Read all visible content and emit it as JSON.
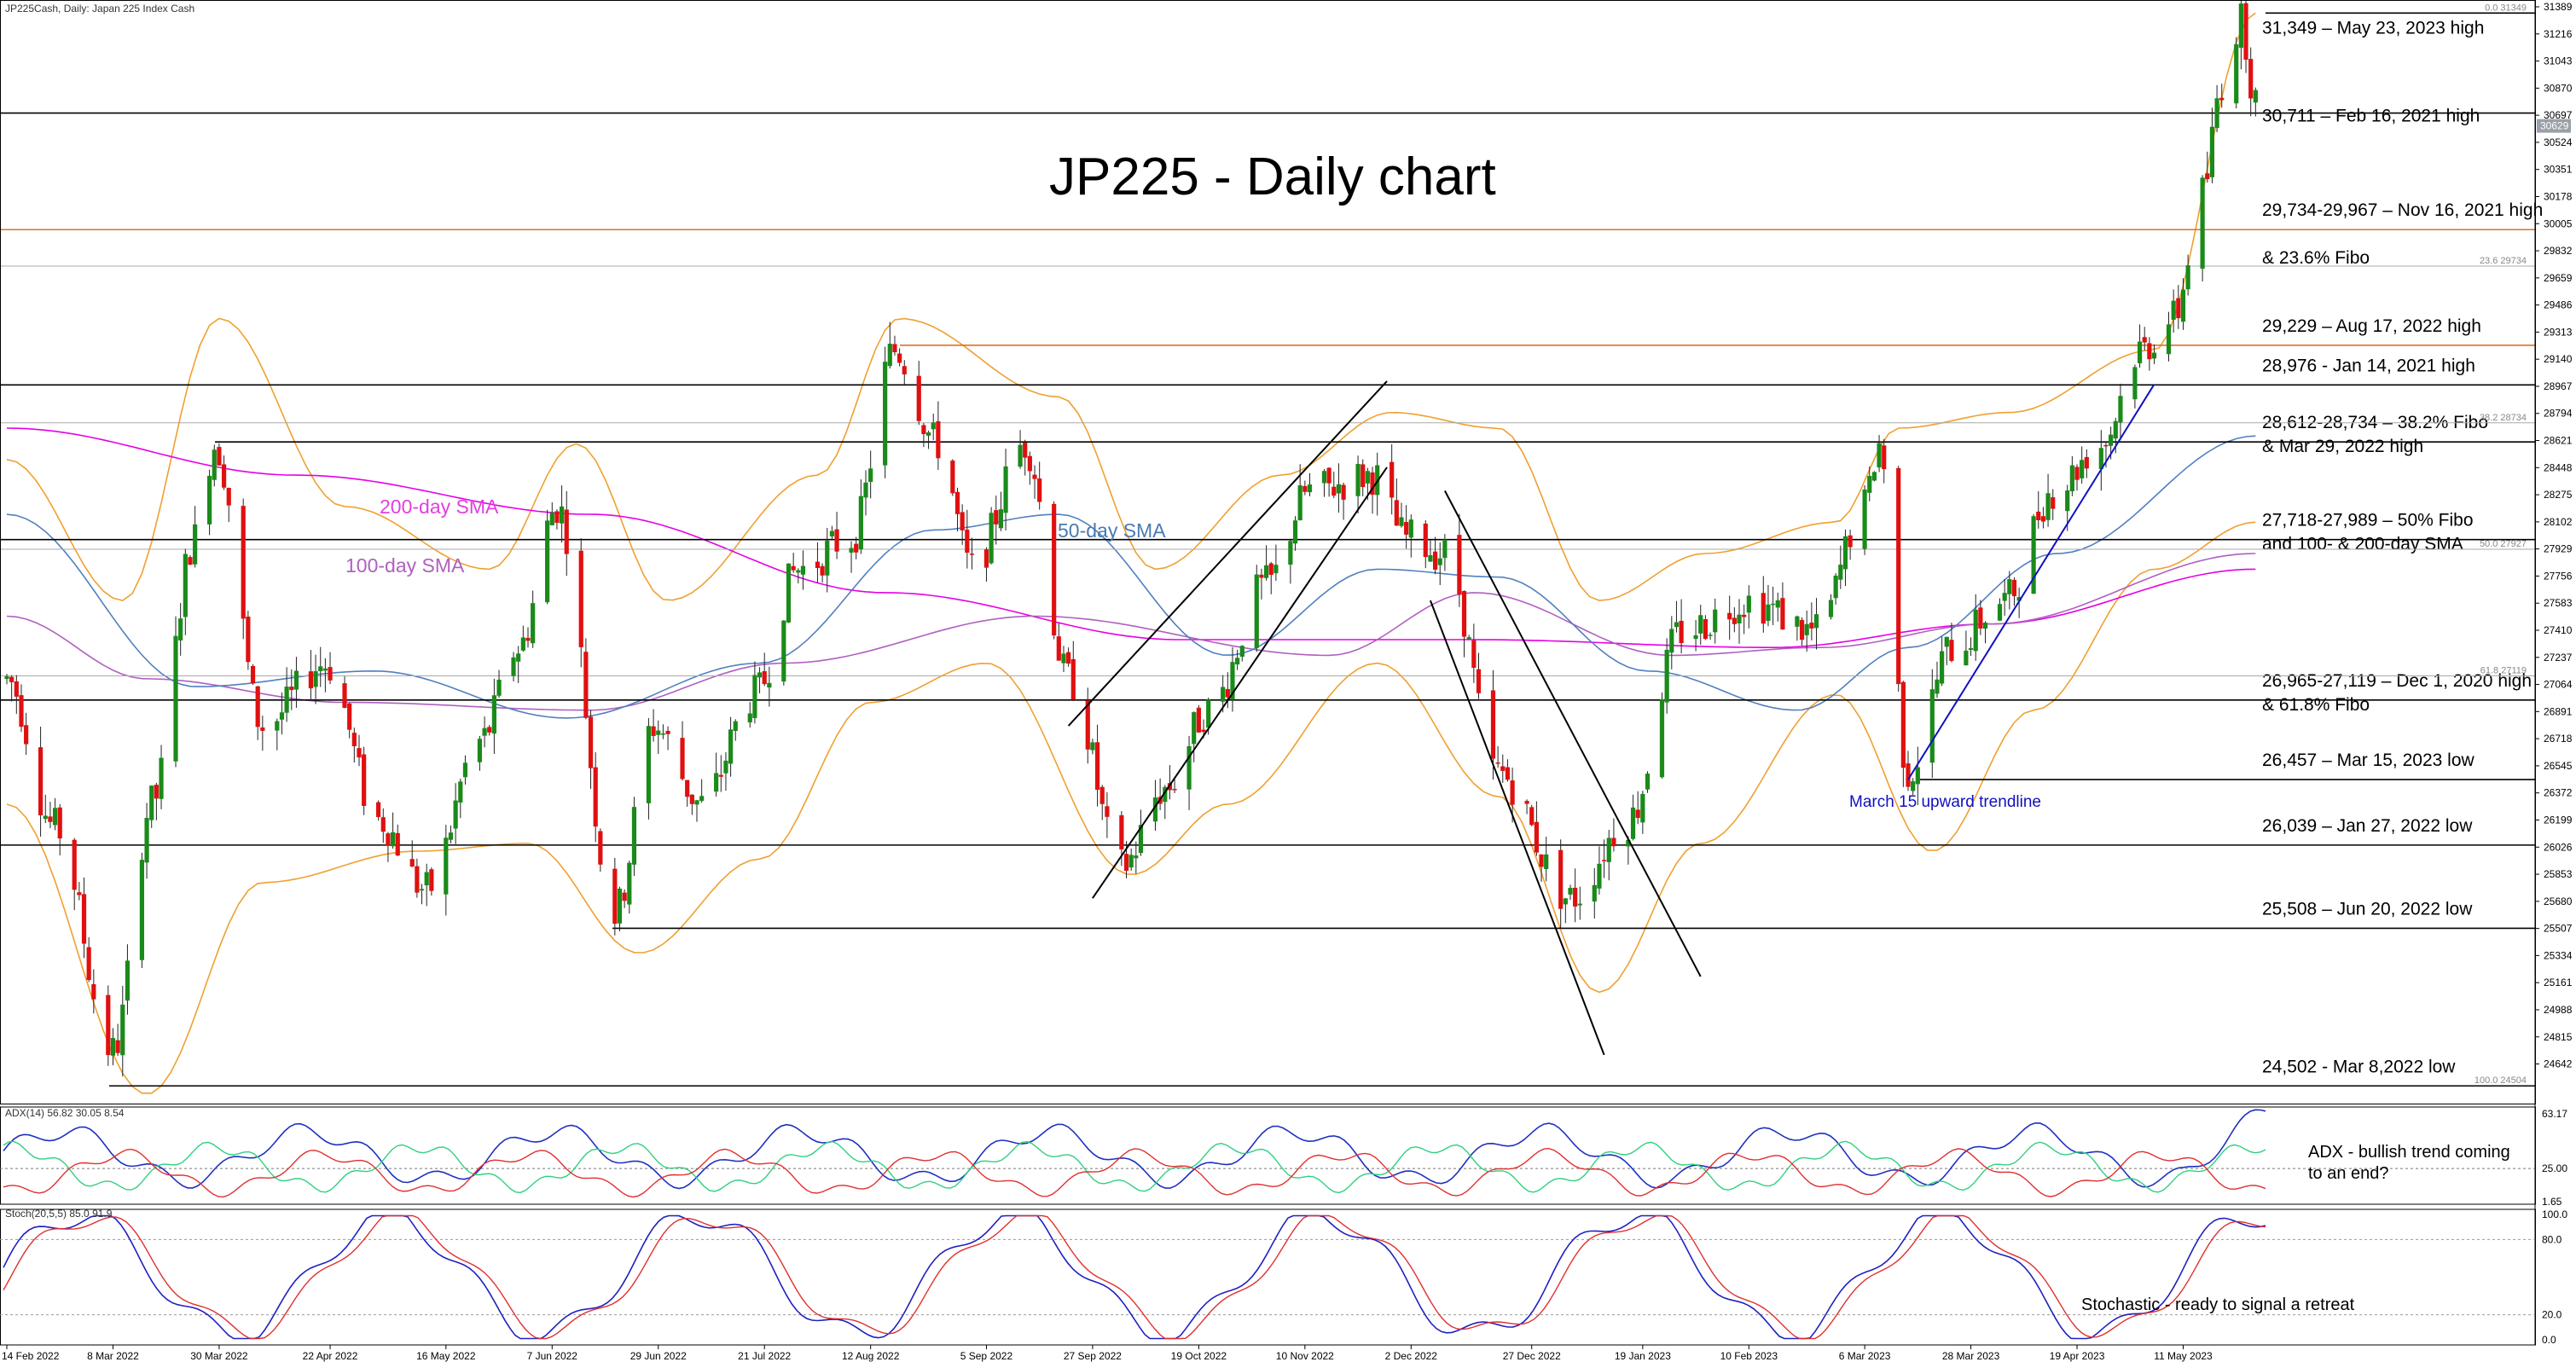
{
  "header": {
    "instrument": "JP225Cash, Daily:  Japan 225 Index Cash",
    "title": "JP225 - Daily chart"
  },
  "chart_data": {
    "type": "candlestick",
    "title": "JP225 - Daily chart",
    "y_range": [
      24400,
      31389
    ],
    "x_range": [
      "2022-02-14",
      "2023-05-23"
    ],
    "price_axis_ticks": [
      "31389",
      "31216",
      "31043",
      "30870",
      "30697",
      "30524",
      "30351",
      "30178",
      "30005",
      "29832",
      "29659",
      "29486",
      "29313",
      "29140",
      "28967",
      "28794",
      "28621",
      "28448",
      "28275",
      "28102",
      "27929",
      "27756",
      "27583",
      "27410",
      "27237",
      "27064",
      "26891",
      "26718",
      "26545",
      "26372",
      "26199",
      "26026",
      "25853",
      "25680",
      "25507",
      "25334",
      "25161",
      "24988",
      "24815",
      "24642"
    ],
    "current_price_label": "30629",
    "date_axis": [
      "14 Feb 2022",
      "8 Mar 2022",
      "30 Mar 2022",
      "22 Apr 2022",
      "16 May 2022",
      "7 Jun 2022",
      "29 Jun 2022",
      "21 Jul 2022",
      "12 Aug 2022",
      "5 Sep 2022",
      "27 Sep 2022",
      "19 Oct 2022",
      "10 Nov 2022",
      "2 Dec 2022",
      "27 Dec 2022",
      "19 Jan 2023",
      "10 Feb 2023",
      "6 Mar 2023",
      "28 Mar 2023",
      "19 Apr 2023",
      "11 May 2023"
    ],
    "price_path": [
      [
        "2022-02-14",
        27100
      ],
      [
        "2022-02-24",
        26150
      ],
      [
        "2022-03-08",
        24720
      ],
      [
        "2022-03-16",
        26300
      ],
      [
        "2022-03-25",
        28000
      ],
      [
        "2022-03-29",
        28600
      ],
      [
        "2022-04-08",
        26800
      ],
      [
        "2022-04-21",
        27200
      ],
      [
        "2022-05-02",
        26200
      ],
      [
        "2022-05-12",
        25750
      ],
      [
        "2022-05-23",
        26700
      ],
      [
        "2022-05-31",
        27300
      ],
      [
        "2022-06-08",
        28200
      ],
      [
        "2022-06-20",
        25600
      ],
      [
        "2022-06-28",
        26800
      ],
      [
        "2022-07-08",
        26300
      ],
      [
        "2022-07-19",
        27000
      ],
      [
        "2022-07-28",
        27800
      ],
      [
        "2022-08-08",
        28000
      ],
      [
        "2022-08-17",
        29200
      ],
      [
        "2022-08-26",
        28600
      ],
      [
        "2022-09-02",
        27800
      ],
      [
        "2022-09-13",
        28600
      ],
      [
        "2022-09-22",
        27100
      ],
      [
        "2022-10-03",
        25900
      ],
      [
        "2022-10-12",
        26400
      ],
      [
        "2022-10-21",
        26900
      ],
      [
        "2022-11-02",
        27700
      ],
      [
        "2022-11-11",
        28300
      ],
      [
        "2022-11-24",
        28400
      ],
      [
        "2022-12-01",
        28000
      ],
      [
        "2022-12-09",
        27900
      ],
      [
        "2022-12-20",
        26500
      ],
      [
        "2023-01-04",
        25700
      ],
      [
        "2023-01-16",
        26200
      ],
      [
        "2023-01-27",
        27400
      ],
      [
        "2023-02-10",
        27600
      ],
      [
        "2023-02-24",
        27400
      ],
      [
        "2023-03-06",
        28200
      ],
      [
        "2023-03-09",
        28600
      ],
      [
        "2023-03-15",
        26500
      ],
      [
        "2023-03-24",
        27300
      ],
      [
        "2023-04-04",
        27600
      ],
      [
        "2023-04-14",
        28300
      ],
      [
        "2023-04-24",
        28600
      ],
      [
        "2023-05-02",
        29200
      ],
      [
        "2023-05-09",
        29400
      ],
      [
        "2023-05-15",
        30200
      ],
      [
        "2023-05-19",
        30900
      ],
      [
        "2023-05-23",
        31300
      ],
      [
        "2023-05-26",
        30800
      ]
    ],
    "moving_averages": [
      {
        "name": "200-day SMA",
        "color": "#e600e6",
        "path": [
          [
            "2022-02-14",
            28700
          ],
          [
            "2022-04-15",
            28400
          ],
          [
            "2022-06-15",
            28150
          ],
          [
            "2022-08-15",
            27650
          ],
          [
            "2022-10-15",
            27350
          ],
          [
            "2022-12-15",
            27350
          ],
          [
            "2023-02-15",
            27300
          ],
          [
            "2023-04-01",
            27450
          ],
          [
            "2023-05-26",
            27800
          ]
        ]
      },
      {
        "name": "100-day SMA",
        "color": "#b060c0",
        "path": [
          [
            "2022-02-14",
            27500
          ],
          [
            "2022-03-15",
            27100
          ],
          [
            "2022-04-25",
            26950
          ],
          [
            "2022-06-15",
            26900
          ],
          [
            "2022-07-25",
            27200
          ],
          [
            "2022-09-15",
            27500
          ],
          [
            "2022-11-15",
            27250
          ],
          [
            "2022-12-15",
            27650
          ],
          [
            "2023-01-25",
            27250
          ],
          [
            "2023-02-25",
            27300
          ],
          [
            "2023-04-01",
            27450
          ],
          [
            "2023-05-26",
            27900
          ]
        ]
      },
      {
        "name": "50-day SMA",
        "color": "#5080c0",
        "path": [
          [
            "2022-02-14",
            28150
          ],
          [
            "2022-03-25",
            27050
          ],
          [
            "2022-05-01",
            27150
          ],
          [
            "2022-06-10",
            26850
          ],
          [
            "2022-07-20",
            27200
          ],
          [
            "2022-08-25",
            28050
          ],
          [
            "2022-09-20",
            28150
          ],
          [
            "2022-10-25",
            27250
          ],
          [
            "2022-11-25",
            27800
          ],
          [
            "2022-12-20",
            27750
          ],
          [
            "2023-01-20",
            27150
          ],
          [
            "2023-02-20",
            26900
          ],
          [
            "2023-03-15",
            27300
          ],
          [
            "2023-04-15",
            27900
          ],
          [
            "2023-05-26",
            28650
          ]
        ]
      }
    ],
    "bollinger_bands": {
      "color": "#f0a030",
      "upper": [
        [
          "2022-02-14",
          28500
        ],
        [
          "2022-03-10",
          27600
        ],
        [
          "2022-03-30",
          29400
        ],
        [
          "2022-04-25",
          28200
        ],
        [
          "2022-05-25",
          27800
        ],
        [
          "2022-06-12",
          28600
        ],
        [
          "2022-07-01",
          27600
        ],
        [
          "2022-08-01",
          28400
        ],
        [
          "2022-08-18",
          29400
        ],
        [
          "2022-09-20",
          28900
        ],
        [
          "2022-10-10",
          27800
        ],
        [
          "2022-11-05",
          28400
        ],
        [
          "2022-11-28",
          28800
        ],
        [
          "2022-12-20",
          28700
        ],
        [
          "2023-01-10",
          27600
        ],
        [
          "2023-02-01",
          27900
        ],
        [
          "2023-02-28",
          28100
        ],
        [
          "2023-03-13",
          28700
        ],
        [
          "2023-04-05",
          28800
        ],
        [
          "2023-05-05",
          29200
        ],
        [
          "2023-05-26",
          31350
        ]
      ],
      "lower": [
        [
          "2022-02-14",
          26300
        ],
        [
          "2022-03-15",
          24450
        ],
        [
          "2022-04-08",
          25800
        ],
        [
          "2022-05-10",
          26000
        ],
        [
          "2022-06-02",
          26050
        ],
        [
          "2022-06-25",
          25350
        ],
        [
          "2022-07-20",
          25950
        ],
        [
          "2022-08-12",
          26950
        ],
        [
          "2022-09-05",
          27200
        ],
        [
          "2022-10-05",
          25850
        ],
        [
          "2022-10-25",
          26300
        ],
        [
          "2022-11-25",
          27200
        ],
        [
          "2022-12-20",
          26350
        ],
        [
          "2023-01-10",
          25100
        ],
        [
          "2023-01-31",
          26050
        ],
        [
          "2023-02-28",
          27000
        ],
        [
          "2023-03-20",
          26000
        ],
        [
          "2023-04-10",
          26900
        ],
        [
          "2023-05-05",
          27800
        ],
        [
          "2023-05-26",
          28100
        ]
      ]
    },
    "levels": [
      {
        "price": 31349,
        "label": "31,349 – May 23, 2023 high",
        "color": "#000000"
      },
      {
        "price": 30711,
        "label": "30,711 – Feb 16, 2021 high",
        "color": "#000000"
      },
      {
        "price": 29967,
        "label": "29,734-29,967 – Nov 16, 2021 high",
        "label2": "& 23.6% Fibo",
        "color": "#e07020"
      },
      {
        "price": 29229,
        "label": "29,229 – Aug 17, 2022 high",
        "color": "#e07020"
      },
      {
        "price": 28976,
        "label": "28,976 - Jan 14, 2021 high",
        "color": "#000000"
      },
      {
        "price": 28612,
        "label": "28,612-28,734 – 38.2% Fibo",
        "label2": "& Mar 29, 2022 high",
        "color": "#000000"
      },
      {
        "price": 27989,
        "label": "27,718-27,989 – 50% Fibo",
        "label2": "and 100- & 200-day SMA",
        "color": "#000000"
      },
      {
        "price": 26965,
        "label": "26,965-27,119 – Dec 1, 2020 high",
        "label2": "& 61.8% Fibo",
        "color": "#000000"
      },
      {
        "price": 26457,
        "label": "26,457 – Mar 15, 2023 low",
        "color": "#000000"
      },
      {
        "price": 26039,
        "label": "26,039 – Jan 27, 2022 low",
        "color": "#000000"
      },
      {
        "price": 25508,
        "label": "25,508 – Jun 20, 2022 low",
        "color": "#000000"
      },
      {
        "price": 24502,
        "label": "24,502 - Mar 8,2022 low",
        "color": "#000000"
      }
    ],
    "fibo_labels": [
      {
        "price": 31349,
        "label": "0.0 31349"
      },
      {
        "price": 29734,
        "label": "23.6 29734"
      },
      {
        "price": 28734,
        "label": "38.2 28734"
      },
      {
        "price": 27927,
        "label": "50.0 27927"
      },
      {
        "price": 27119,
        "label": "61.8 27119"
      },
      {
        "price": 24504,
        "label": "100.0 24504"
      }
    ],
    "annotations": {
      "sma200": "200-day SMA",
      "sma100": "100-day SMA",
      "sma50": "50-day SMA",
      "trendline": "March 15 upward trendline",
      "adx_note": "ADX - bullish trend coming",
      "adx_note2": "to an end?",
      "stoch_note": "Stochastic - ready to signal a retreat"
    },
    "adx": {
      "header": "ADX(14) 56.82 30.05 8.54",
      "ticks": [
        "63.17",
        "25.00",
        "1.65"
      ],
      "threshold": 25,
      "range": [
        0,
        68
      ]
    },
    "stochastic": {
      "header": "Stoch(20,5,5) 85.0 91.9",
      "ticks": [
        "100.0",
        "80.0",
        "20.0",
        "0.0"
      ],
      "range": [
        0,
        100
      ],
      "k_color": "#2020c0",
      "d_color": "#e03030"
    },
    "colors": {
      "bull": "#1a8a1a",
      "bear": "#e01010",
      "trendline": "#1010c0"
    }
  }
}
